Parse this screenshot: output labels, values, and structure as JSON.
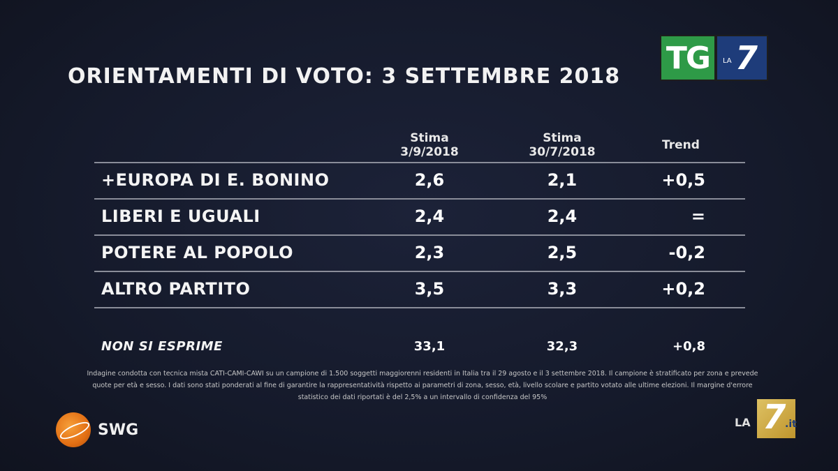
{
  "title": "ORIENTAMENTI DI VOTO: 3 SETTEMBRE 2018",
  "logos": {
    "tg_text": "TG",
    "la_text": "LA",
    "seven_text": "7",
    "swg_text": "SWG",
    "corner_la": "LA",
    "corner_seven": "7",
    "corner_it": ".it",
    "colors": {
      "tg_green": "#2e9a47",
      "la7_blue": "#1e3c7a",
      "swg_orange": "#e36f14",
      "la7it_gold": "#d3a32e"
    }
  },
  "table": {
    "headers": {
      "col1_line1": "Stima",
      "col1_line2": "3/9/2018",
      "col2_line1": "Stima",
      "col2_line2": "30/7/2018",
      "col3": "Trend"
    },
    "rows": [
      {
        "name": "+EUROPA DI E. BONINO",
        "v1": "2,6",
        "v2": "2,1",
        "trend": "+0,5"
      },
      {
        "name": "LIBERI E UGUALI",
        "v1": "2,4",
        "v2": "2,4",
        "trend": "="
      },
      {
        "name": "POTERE AL POPOLO",
        "v1": "2,3",
        "v2": "2,5",
        "trend": "-0,2"
      },
      {
        "name": "ALTRO PARTITO",
        "v1": "3,5",
        "v2": "3,3",
        "trend": "+0,2"
      }
    ],
    "non_si_esprime": {
      "name": "NON SI ESPRIME",
      "v1": "33,1",
      "v2": "32,3",
      "trend": "+0,8"
    }
  },
  "footnote": "Indagine condotta con tecnica mista CATI-CAMI-CAWI su un campione di 1.500 soggetti maggiorenni residenti in Italia tra il 29 agosto e il 3 settembre 2018. Il campione è stratificato per zona e prevede quote per età e sesso. I dati sono stati ponderati al fine di garantire la rappresentatività rispetto ai parametri di zona, sesso, età, livello scolare e partito votato alle ultime elezioni. Il margine d'errore statistico dei dati riportati è del 2,5% a un intervallo di confidenza del 95%"
}
